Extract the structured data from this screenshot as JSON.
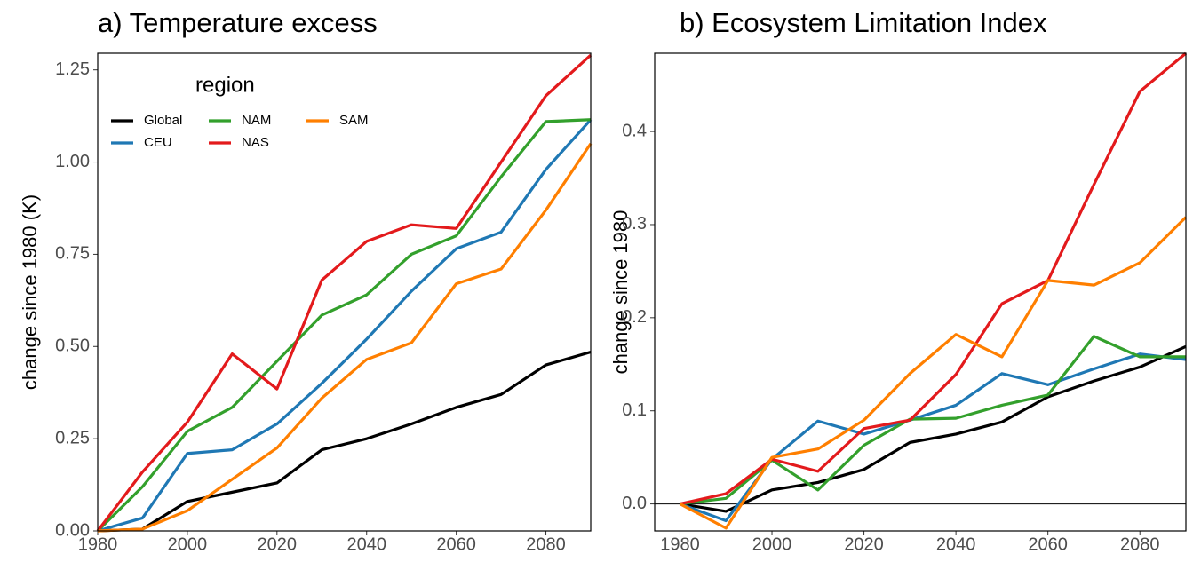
{
  "chart_data": [
    {
      "type": "line",
      "title": "a) Temperature excess",
      "y_label": "change since 1980 (K)",
      "legend_title": "region",
      "x": [
        1980,
        1990,
        2000,
        2010,
        2020,
        2030,
        2040,
        2050,
        2060,
        2070,
        2080,
        2090
      ],
      "xlim": [
        1980,
        2090
      ],
      "ylim": [
        0,
        1.295
      ],
      "xticks": [
        1980,
        2000,
        2020,
        2040,
        2060,
        2080
      ],
      "yticks": [
        {
          "value": 0,
          "label": "0.00"
        },
        0.25,
        {
          "value": 0.5,
          "label": "0.50"
        },
        0.75,
        {
          "value": 1,
          "label": "1.00"
        },
        1.25
      ],
      "series": [
        {
          "name": "Global",
          "color": "#000000",
          "values": [
            0,
            0.005,
            0.08,
            0.105,
            0.13,
            0.22,
            0.25,
            0.29,
            0.335,
            0.37,
            0.45,
            0.485
          ]
        },
        {
          "name": "CEU",
          "color": "#1f78b4",
          "values": [
            0,
            0.035,
            0.21,
            0.22,
            0.29,
            0.4,
            0.52,
            0.65,
            0.765,
            0.81,
            0.98,
            1.115
          ]
        },
        {
          "name": "NAM",
          "color": "#33a02c",
          "values": [
            0,
            0.12,
            0.27,
            0.335,
            0.46,
            0.585,
            0.64,
            0.75,
            0.8,
            0.96,
            1.11,
            1.115
          ]
        },
        {
          "name": "NAS",
          "color": "#e31a1c",
          "values": [
            0,
            0.16,
            0.295,
            0.48,
            0.385,
            0.68,
            0.785,
            0.83,
            0.82,
            1.0,
            1.18,
            1.29
          ]
        },
        {
          "name": "SAM",
          "color": "#ff7f00",
          "values": [
            0,
            0.005,
            0.055,
            0.14,
            0.225,
            0.36,
            0.465,
            0.51,
            0.67,
            0.71,
            0.87,
            1.05
          ]
        }
      ]
    },
    {
      "type": "line",
      "title": "b) Ecosystem Limitation Index",
      "y_label": "change since 1980",
      "x": [
        1980,
        1990,
        2000,
        2010,
        2020,
        2030,
        2040,
        2050,
        2060,
        2070,
        2080,
        2090
      ],
      "xlim": [
        1974.5,
        2090
      ],
      "ylim": [
        -0.029,
        0.484
      ],
      "hline": 0,
      "xticks": [
        1980,
        2000,
        2020,
        2040,
        2060,
        2080
      ],
      "yticks": [
        {
          "value": 0,
          "label": "0.0"
        },
        0.1,
        0.2,
        0.3,
        0.4
      ],
      "series": [
        {
          "name": "Global",
          "color": "#000000",
          "values": [
            0,
            -0.008,
            0.015,
            0.023,
            0.037,
            0.066,
            0.075,
            0.088,
            0.115,
            0.132,
            0.147,
            0.169
          ]
        },
        {
          "name": "CEU",
          "color": "#1f78b4",
          "values": [
            0,
            -0.018,
            0.048,
            0.089,
            0.075,
            0.09,
            0.106,
            0.14,
            0.128,
            0.145,
            0.161,
            0.155
          ]
        },
        {
          "name": "NAM",
          "color": "#33a02c",
          "values": [
            0,
            0.006,
            0.047,
            0.015,
            0.063,
            0.091,
            0.092,
            0.106,
            0.117,
            0.18,
            0.158,
            0.158
          ]
        },
        {
          "name": "NAS",
          "color": "#e31a1c",
          "values": [
            0,
            0.011,
            0.048,
            0.035,
            0.081,
            0.09,
            0.139,
            0.215,
            0.24,
            0.343,
            0.443,
            0.484
          ]
        },
        {
          "name": "SAM",
          "color": "#ff7f00",
          "values": [
            0,
            -0.026,
            0.05,
            0.059,
            0.09,
            0.14,
            0.182,
            0.158,
            0.24,
            0.235,
            0.259,
            0.308
          ]
        }
      ]
    }
  ]
}
